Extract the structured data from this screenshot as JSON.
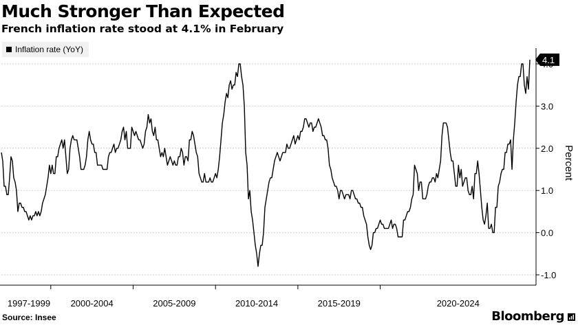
{
  "title": "Much Stronger Than Expected",
  "subtitle": "French inflation rate stood at 4.1% in February",
  "source": "Source: Insee",
  "brand": "Bloomberg",
  "chart_data": {
    "type": "line",
    "ylabel": "Percent",
    "ylim": [
      -1.2,
      4.2
    ],
    "y_ticks": [
      {
        "value": 4.0,
        "label": "4.0"
      },
      {
        "value": 3.0,
        "label": "3.0"
      },
      {
        "value": 2.0,
        "label": "2.0"
      },
      {
        "value": 1.0,
        "label": "1.0"
      },
      {
        "value": 0.0,
        "label": "0.0"
      },
      {
        "value": -1.0,
        "label": "-1.0"
      }
    ],
    "x_start": "1997-01",
    "x_end": "2023-02",
    "x_ticks": [
      "1997-1999",
      "2000-2004",
      "2005-2009",
      "2010-2014",
      "2015-2019",
      "2020-2024"
    ],
    "grid": true,
    "legend_position": "top-left",
    "last_value_label": "4.1",
    "series": [
      {
        "name": "Inflation rate (YoY)",
        "color": "#000000",
        "values": [
          1.9,
          1.7,
          1.1,
          1.1,
          0.9,
          0.9,
          1.3,
          1.8,
          1.7,
          1.3,
          1.2,
          1.0,
          0.5,
          0.7,
          0.7,
          0.6,
          0.6,
          0.5,
          0.5,
          0.4,
          0.3,
          0.4,
          0.3,
          0.4,
          0.4,
          0.5,
          0.4,
          0.5,
          0.4,
          0.5,
          0.7,
          0.8,
          0.9,
          1.1,
          1.3,
          1.6,
          1.4,
          1.6,
          1.4,
          1.4,
          1.8,
          1.8,
          2.0,
          2.1,
          2.2,
          2.0,
          2.2,
          1.8,
          1.4,
          1.5,
          2.0,
          2.2,
          2.3,
          2.2,
          2.2,
          2.2,
          2.0,
          1.8,
          1.5,
          1.5,
          1.5,
          1.6,
          1.8,
          2.2,
          2.4,
          2.2,
          2.1,
          2.1,
          1.9,
          1.9,
          1.6,
          1.6,
          1.6,
          1.6,
          1.5,
          1.5,
          1.5,
          1.5,
          1.8,
          1.9,
          1.9,
          2.0,
          2.1,
          1.9,
          2.0,
          2.0,
          2.1,
          2.2,
          2.4,
          2.5,
          2.2,
          2.4,
          2.0,
          2.0,
          2.0,
          2.5,
          2.4,
          2.3,
          2.4,
          2.3,
          2.2,
          2.2,
          2.1,
          2.0,
          2.1,
          2.4,
          2.5,
          2.8,
          2.6,
          2.7,
          2.4,
          2.3,
          2.5,
          2.2,
          2.2,
          2.0,
          1.8,
          1.9,
          1.8,
          2.0,
          1.8,
          1.6,
          1.7,
          1.8,
          1.7,
          1.6,
          1.7,
          1.6,
          1.6,
          1.8,
          1.8,
          2.0,
          1.9,
          1.6,
          1.8,
          1.8,
          1.7,
          2.2,
          2.2,
          2.4,
          2.3,
          2.1,
          1.9,
          1.8,
          1.4,
          1.3,
          1.2,
          1.2,
          1.4,
          1.2,
          1.2,
          1.2,
          1.3,
          1.2,
          1.2,
          1.3,
          1.4,
          1.3,
          1.5,
          1.8,
          2.2,
          2.6,
          2.8,
          3.1,
          3.3,
          3.2,
          3.5,
          3.6,
          3.4,
          3.5,
          3.5,
          3.8,
          3.7,
          4.0,
          4.0,
          3.7,
          3.5,
          3.0,
          1.9,
          1.6,
          0.8,
          1.0,
          0.5,
          0.3,
          0.0,
          -0.3,
          -0.5,
          -0.8,
          -0.5,
          -0.3,
          -0.3,
          0.0,
          0.6,
          0.8,
          1.0,
          1.2,
          1.3,
          1.3,
          1.5,
          1.7,
          1.8,
          1.9,
          1.8,
          1.7,
          1.8,
          1.9,
          1.9,
          1.9,
          2.1,
          2.0,
          2.0,
          2.1,
          2.2,
          2.3,
          2.1,
          2.2,
          2.3,
          2.2,
          2.4,
          2.4,
          2.5,
          2.7,
          2.7,
          2.6,
          2.5,
          2.6,
          2.6,
          2.4,
          2.5,
          2.5,
          2.6,
          2.7,
          2.6,
          2.5,
          2.3,
          2.3,
          2.2,
          2.2,
          2.0,
          1.6,
          1.5,
          1.3,
          1.2,
          1.1,
          1.1,
          1.0,
          0.8,
          1.0,
          1.0,
          0.9,
          0.8,
          0.9,
          0.9,
          0.9,
          0.8,
          1.0,
          1.0,
          0.9,
          0.8,
          0.8,
          0.7,
          0.7,
          0.6,
          0.6,
          0.4,
          0.3,
          0.2,
          -0.1,
          -0.3,
          -0.4,
          -0.3,
          0.0,
          0.0,
          0.1,
          0.1,
          0.2,
          0.3,
          0.2,
          0.2,
          0.1,
          0.1,
          0.1,
          0.1,
          0.2,
          0.3,
          0.1,
          0.2,
          0.2,
          0.1,
          -0.1,
          -0.1,
          -0.1,
          -0.1,
          0.3,
          0.3,
          0.4,
          0.5,
          0.5,
          0.6,
          0.8,
          0.9,
          1.6,
          1.5,
          1.4,
          1.0,
          1.2,
          1.2,
          0.8,
          0.8,
          0.8,
          0.9,
          1.1,
          1.2,
          1.2,
          1.3,
          1.3,
          1.2,
          1.4,
          1.3,
          1.5,
          1.7,
          2.3,
          2.6,
          2.6,
          2.6,
          2.5,
          2.2,
          1.9,
          1.7,
          1.7,
          1.4,
          1.1,
          1.1,
          1.6,
          1.3,
          1.5,
          1.1,
          1.2,
          1.3,
          1.3,
          1.0,
          0.9,
          0.9,
          1.1,
          0.8,
          1.4,
          1.4,
          1.7,
          1.4,
          1.0,
          0.6,
          0.3,
          0.2,
          0.4,
          0.7,
          0.1,
          0.1,
          0.2,
          0.0,
          0.0,
          0.6,
          0.6,
          1.1,
          1.2,
          1.4,
          1.5,
          1.5,
          1.9,
          1.9,
          2.1,
          2.1,
          2.2,
          1.5,
          2.2,
          2.6,
          3.1,
          3.5,
          3.7,
          3.7,
          4.0,
          4.0,
          3.5,
          3.3,
          3.7,
          3.4,
          4.1
        ]
      }
    ]
  }
}
